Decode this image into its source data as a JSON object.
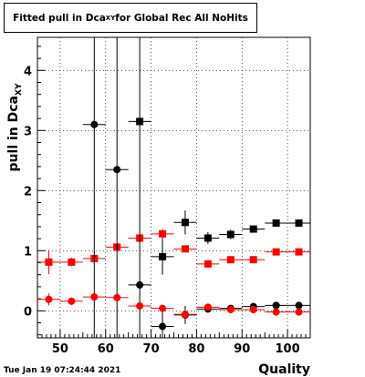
{
  "chart_data": {
    "type": "scatter",
    "title": {
      "prefix": "Fitted pull in Dca",
      "subscript": "XY",
      "suffix": " for Global Rec All NoHits"
    },
    "ylabel": {
      "text": "pull in Dca",
      "subscript": "XY"
    },
    "xlabel": "Quality",
    "timestamp": "Tue Jan 19 07:24:44 2021",
    "xlim": [
      45,
      105
    ],
    "ylim": [
      -0.45,
      4.55
    ],
    "x_ticks": [
      "50",
      "60",
      "70",
      "80",
      "90",
      "100"
    ],
    "y_ticks": [
      "0",
      "1",
      "2",
      "3",
      "4"
    ],
    "grid": true,
    "series": [
      {
        "marker": "square",
        "color": "#000000",
        "points": [
          {
            "x": 67.5,
            "y": 3.15,
            "xerr": 2.5,
            "yerr": 0
          },
          {
            "x": 72.5,
            "y": 0.9,
            "xerr": 2.5,
            "yerr": 0.3
          },
          {
            "x": 77.5,
            "y": 1.47,
            "xerr": 2.5,
            "yerr": 0.2
          },
          {
            "x": 82.5,
            "y": 1.21,
            "xerr": 2.5,
            "yerr": 0.1
          },
          {
            "x": 87.5,
            "y": 1.27,
            "xerr": 2.5,
            "yerr": 0.08
          },
          {
            "x": 92.5,
            "y": 1.36,
            "xerr": 2.5,
            "yerr": 0.06
          },
          {
            "x": 97.5,
            "y": 1.46,
            "xerr": 2.5,
            "yerr": 0.05
          },
          {
            "x": 102.5,
            "y": 1.46,
            "xerr": 2.5,
            "yerr": 0.04
          }
        ]
      },
      {
        "marker": "square",
        "color": "#ff0000",
        "points": [
          {
            "x": 47.5,
            "y": 0.81,
            "xerr": 2.5,
            "yerr": 0.2
          },
          {
            "x": 52.5,
            "y": 0.81,
            "xerr": 2.5,
            "yerr": 0.07
          },
          {
            "x": 57.5,
            "y": 0.87,
            "xerr": 2.5,
            "yerr": 0.07
          },
          {
            "x": 62.5,
            "y": 1.06,
            "xerr": 2.5,
            "yerr": 0.07
          },
          {
            "x": 67.5,
            "y": 1.21,
            "xerr": 2.5,
            "yerr": 0.07
          },
          {
            "x": 72.5,
            "y": 1.28,
            "xerr": 2.5,
            "yerr": 0.08
          },
          {
            "x": 77.5,
            "y": 1.03,
            "xerr": 2.5,
            "yerr": 0.05
          },
          {
            "x": 82.5,
            "y": 0.78,
            "xerr": 2.5,
            "yerr": 0.04
          },
          {
            "x": 87.5,
            "y": 0.85,
            "xerr": 2.5,
            "yerr": 0.03
          },
          {
            "x": 92.5,
            "y": 0.85,
            "xerr": 2.5,
            "yerr": 0.03
          },
          {
            "x": 97.5,
            "y": 0.98,
            "xerr": 2.5,
            "yerr": 0.03
          },
          {
            "x": 102.5,
            "y": 0.98,
            "xerr": 2.5,
            "yerr": 0.02
          }
        ]
      },
      {
        "marker": "circle",
        "color": "#000000",
        "points": [
          {
            "x": 57.5,
            "y": 3.1,
            "xerr": 2.5,
            "yerr": 5.0
          },
          {
            "x": 62.5,
            "y": 2.35,
            "xerr": 2.5,
            "yerr": 5.0
          },
          {
            "x": 67.5,
            "y": 0.43,
            "xerr": 2.5,
            "yerr": 5.0
          },
          {
            "x": 72.5,
            "y": -0.26,
            "xerr": 2.5,
            "yerr": 0.25
          },
          {
            "x": 77.5,
            "y": -0.07,
            "xerr": 2.5,
            "yerr": 0.15
          },
          {
            "x": 82.5,
            "y": 0.03,
            "xerr": 2.5,
            "yerr": 0.06
          },
          {
            "x": 87.5,
            "y": 0.04,
            "xerr": 2.5,
            "yerr": 0.05
          },
          {
            "x": 92.5,
            "y": 0.07,
            "xerr": 2.5,
            "yerr": 0.04
          },
          {
            "x": 97.5,
            "y": 0.09,
            "xerr": 2.5,
            "yerr": 0.03
          },
          {
            "x": 102.5,
            "y": 0.09,
            "xerr": 2.5,
            "yerr": 0.03
          }
        ]
      },
      {
        "marker": "circle",
        "color": "#ff0000",
        "points": [
          {
            "x": 47.5,
            "y": 0.19,
            "xerr": 2.5,
            "yerr": 0.1
          },
          {
            "x": 52.5,
            "y": 0.16,
            "xerr": 2.5,
            "yerr": 0.06
          },
          {
            "x": 57.5,
            "y": 0.23,
            "xerr": 2.5,
            "yerr": 0.06
          },
          {
            "x": 62.5,
            "y": 0.22,
            "xerr": 2.5,
            "yerr": 0.06
          },
          {
            "x": 67.5,
            "y": 0.08,
            "xerr": 2.5,
            "yerr": 0.06
          },
          {
            "x": 72.5,
            "y": 0.04,
            "xerr": 2.5,
            "yerr": 0.05
          },
          {
            "x": 77.5,
            "y": -0.06,
            "xerr": 2.5,
            "yerr": 0.04
          },
          {
            "x": 82.5,
            "y": 0.06,
            "xerr": 2.5,
            "yerr": 0.03
          },
          {
            "x": 87.5,
            "y": 0.02,
            "xerr": 2.5,
            "yerr": 0.03
          },
          {
            "x": 92.5,
            "y": 0.02,
            "xerr": 2.5,
            "yerr": 0.02
          },
          {
            "x": 97.5,
            "y": -0.02,
            "xerr": 2.5,
            "yerr": 0.02
          },
          {
            "x": 102.5,
            "y": -0.02,
            "xerr": 2.5,
            "yerr": 0.02
          }
        ]
      }
    ]
  }
}
